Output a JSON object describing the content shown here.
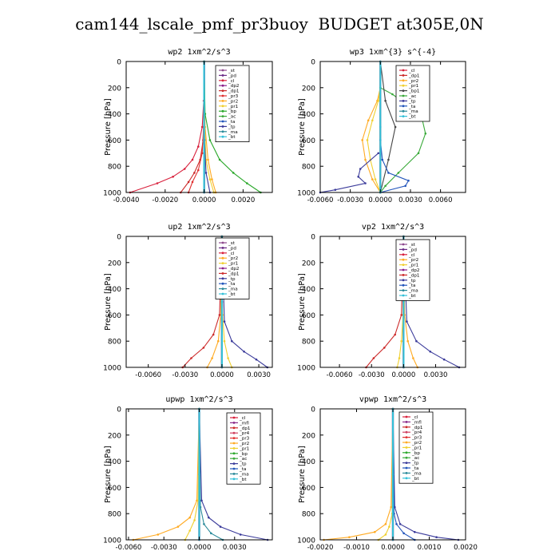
{
  "title": "cam144_lscale_pmf_pr3buoy  BUDGET at305E,0N",
  "colors": {
    "_st": "#8e4a8e",
    "_pd": "#6a2a86",
    "_cl": "#d8203c",
    "_dp2": "#8a1f8a",
    "_dp1": "#cc2a2a",
    "_pr3": "#e03030",
    "_pr2": "#ffaa22",
    "_pr1": "#f0d030",
    "_bp": "#2aa82a",
    "_ac": "#3aaa3a",
    "_ta": "#2255bb",
    "_tp": "#3a3a9a",
    "_ma": "#2a8a9a",
    "_bt": "#33c0d8",
    "_mfl": "#8a2a8a",
    "_pr4": "#d04060"
  },
  "chart_data": [
    {
      "type": "line",
      "title": "wp2  1xm^2/s^3",
      "ylabel": "Pressure [hPa]",
      "xlim": [
        -0.004,
        0.0035
      ],
      "ylim": [
        1000,
        0
      ],
      "xticks": [
        -0.004,
        -0.002,
        0.0,
        0.002
      ],
      "xtick_labels": [
        "-0.0040",
        "-0.0020",
        "0.0000",
        "0.0020"
      ],
      "yticks": [
        0,
        200,
        400,
        600,
        800,
        1000
      ],
      "ytick_labels": [
        "0",
        "200",
        "400",
        "600",
        "800",
        "1000"
      ],
      "legend": [
        "_st",
        "_pd",
        "_cl",
        "_dp2",
        "_dp1",
        "_pr3",
        "_pr2",
        "_pr1",
        "_bp",
        "_ac",
        "_ta",
        "_tp",
        "_ma",
        "_bt"
      ],
      "legend_position": "top-right",
      "series": [
        {
          "name": "_st",
          "x": [
            0,
            0,
            0
          ],
          "p": [
            0,
            500,
            1000
          ]
        },
        {
          "name": "_pd",
          "x": [
            0,
            0,
            0
          ],
          "p": [
            0,
            500,
            1000
          ]
        },
        {
          "name": "_cl",
          "x": [
            0,
            -2e-05,
            -0.0001,
            -0.0003,
            -0.0006,
            -0.001,
            -0.0016,
            -0.0024,
            -0.0038
          ],
          "p": [
            0,
            300,
            500,
            650,
            750,
            820,
            880,
            930,
            1000
          ]
        },
        {
          "name": "_dp1",
          "x": [
            0,
            -1e-05,
            -5e-05,
            -0.0002,
            -0.0005,
            -0.0008,
            -0.0012
          ],
          "p": [
            0,
            400,
            600,
            750,
            850,
            920,
            1000
          ]
        },
        {
          "name": "_pr3",
          "x": [
            0,
            -3e-05,
            -0.0001,
            -0.0003,
            -0.0006,
            -0.0008
          ],
          "p": [
            0,
            500,
            700,
            830,
            920,
            1000
          ]
        },
        {
          "name": "_pr2",
          "x": [
            0,
            5e-05,
            0.0002,
            0.0004,
            0.0006
          ],
          "p": [
            0,
            500,
            750,
            900,
            1000
          ]
        },
        {
          "name": "_pr1",
          "x": [
            0,
            3e-05,
            0.0001,
            0.0003,
            0.0005
          ],
          "p": [
            0,
            500,
            750,
            900,
            1000
          ]
        },
        {
          "name": "_bp",
          "x": [
            0,
            5e-05,
            0.0003,
            0.0008,
            0.0015,
            0.0022,
            0.0029
          ],
          "p": [
            0,
            400,
            600,
            750,
            850,
            930,
            1000
          ]
        },
        {
          "name": "_tp",
          "x": [
            0,
            2e-05,
            0.0001,
            0.0003
          ],
          "p": [
            0,
            600,
            850,
            1000
          ]
        },
        {
          "name": "_bt",
          "x": [
            0,
            0,
            0
          ],
          "p": [
            0,
            500,
            1000
          ]
        }
      ]
    },
    {
      "type": "line",
      "title": "wp3  1xm^{3} s^{-4}",
      "ylabel": "Pressure [hPa]",
      "xlim": [
        -0.006,
        0.0085
      ],
      "ylim": [
        1000,
        0
      ],
      "xticks": [
        -0.006,
        -0.003,
        0.0,
        0.003,
        0.006
      ],
      "xtick_labels": [
        "-0.0060",
        "-0.0030",
        "0.0000",
        "0.0030",
        "0.0060"
      ],
      "yticks": [
        0,
        200,
        400,
        600,
        800,
        1000
      ],
      "ytick_labels": [
        "0",
        "200",
        "400",
        "600",
        "800",
        "1000"
      ],
      "legend": [
        "_cl",
        "_dp1",
        "_pr2",
        "_pr1",
        "_bp1",
        "_ac",
        "_tp",
        "_ta",
        "_ma",
        "_bt"
      ],
      "legend_position": "top-right",
      "series": [
        {
          "name": "_cl",
          "x": [
            0,
            0,
            0
          ],
          "p": [
            0,
            500,
            1000
          ]
        },
        {
          "name": "_pr2",
          "x": [
            0,
            -0.0003,
            -0.0012,
            -0.0018,
            -0.0015,
            -0.0008,
            0
          ],
          "p": [
            200,
            300,
            450,
            600,
            750,
            900,
            1000
          ]
        },
        {
          "name": "_pr1",
          "x": [
            0,
            -0.0002,
            -0.0008,
            -0.0013,
            -0.001,
            -0.0005,
            0
          ],
          "p": [
            200,
            300,
            450,
            600,
            750,
            900,
            1000
          ]
        },
        {
          "name": "_ac",
          "x": [
            0,
            0.0012,
            0.003,
            0.0042,
            0.0045,
            0.0038,
            0.0018,
            0.0005,
            0
          ],
          "p": [
            200,
            250,
            350,
            450,
            550,
            700,
            850,
            950,
            1000
          ]
        },
        {
          "name": "_bp1",
          "x": [
            0,
            0.0005,
            0.0015,
            0.0008,
            0
          ],
          "p": [
            0,
            300,
            500,
            750,
            1000
          ]
        },
        {
          "name": "_ta",
          "x": [
            0,
            0.0002,
            0.0008,
            0.0028,
            0.0025,
            0
          ],
          "p": [
            600,
            750,
            850,
            910,
            950,
            1000
          ]
        },
        {
          "name": "_tp",
          "x": [
            -0.0002,
            -0.002,
            -0.0022,
            -0.0015,
            -0.0045,
            -0.006
          ],
          "p": [
            700,
            820,
            880,
            930,
            980,
            1000
          ]
        },
        {
          "name": "_bt",
          "x": [
            0,
            0,
            0
          ],
          "p": [
            0,
            500,
            1000
          ]
        }
      ]
    },
    {
      "type": "line",
      "title": "up2  1xm^2/s^3",
      "ylabel": "Pressure [hPa]",
      "xlim": [
        -0.0078,
        0.0041
      ],
      "ylim": [
        1000,
        0
      ],
      "xticks": [
        -0.006,
        -0.003,
        0.0,
        0.003
      ],
      "xtick_labels": [
        "-0.0060",
        "-0.0030",
        "0.0000",
        "0.0030"
      ],
      "yticks": [
        0,
        200,
        400,
        600,
        800,
        1000
      ],
      "ytick_labels": [
        "0",
        "200",
        "400",
        "600",
        "800",
        "1000"
      ],
      "legend": [
        "_st",
        "_pd",
        "_cl",
        "_pr2",
        "_pr1",
        "_dp2",
        "_dp1",
        "_tp",
        "_ta",
        "_ma",
        "_bt"
      ],
      "legend_position": "top-right",
      "series": [
        {
          "name": "_st",
          "x": [
            0,
            0,
            0
          ],
          "p": [
            0,
            500,
            1000
          ]
        },
        {
          "name": "_cl",
          "x": [
            0,
            0,
            0
          ],
          "p": [
            0,
            500,
            1000
          ]
        },
        {
          "name": "_pr2",
          "x": [
            0,
            -0.0001,
            -0.0003,
            -0.0008,
            -0.0012
          ],
          "p": [
            0,
            600,
            800,
            930,
            1000
          ]
        },
        {
          "name": "_pr1",
          "x": [
            0,
            5e-05,
            0.0002,
            0.0005,
            0.0008
          ],
          "p": [
            0,
            600,
            800,
            930,
            1000
          ]
        },
        {
          "name": "_dp1",
          "x": [
            0,
            -0.0002,
            -0.0007,
            -0.0015,
            -0.0025,
            -0.0032
          ],
          "p": [
            0,
            600,
            750,
            850,
            930,
            1000
          ]
        },
        {
          "name": "_tp",
          "x": [
            0,
            0.0002,
            0.0008,
            0.0018,
            0.0028,
            0.0037
          ],
          "p": [
            0,
            650,
            800,
            880,
            940,
            1000
          ]
        },
        {
          "name": "_bt",
          "x": [
            0,
            0,
            0
          ],
          "p": [
            0,
            500,
            1000
          ]
        }
      ]
    },
    {
      "type": "line",
      "title": "vp2  1xm^2/s^3",
      "ylabel": "Pressure [hPa]",
      "xlim": [
        -0.0078,
        0.0058
      ],
      "ylim": [
        1000,
        0
      ],
      "xticks": [
        -0.006,
        -0.003,
        0.0,
        0.003
      ],
      "xtick_labels": [
        "-0.0060",
        "-0.0030",
        "0.0000",
        "0.0030"
      ],
      "yticks": [
        0,
        200,
        400,
        600,
        800,
        1000
      ],
      "ytick_labels": [
        "0",
        "200",
        "400",
        "600",
        "800",
        "1000"
      ],
      "legend": [
        "_st",
        "_pd",
        "_cl",
        "_pr2",
        "_pr1",
        "_dp2",
        "_dp1",
        "_tp",
        "_ta",
        "_ma",
        "_bt"
      ],
      "legend_position": "top-right",
      "series": [
        {
          "name": "_st",
          "x": [
            0,
            0,
            0
          ],
          "p": [
            0,
            500,
            1000
          ]
        },
        {
          "name": "_cl",
          "x": [
            0,
            0,
            0
          ],
          "p": [
            0,
            500,
            1000
          ]
        },
        {
          "name": "_pr2",
          "x": [
            0,
            0.0001,
            0.0004,
            0.0009,
            0.0013
          ],
          "p": [
            0,
            600,
            800,
            930,
            1000
          ]
        },
        {
          "name": "_pr1",
          "x": [
            0,
            -5e-05,
            -0.0002,
            -0.0004,
            -0.0006
          ],
          "p": [
            0,
            600,
            800,
            930,
            1000
          ]
        },
        {
          "name": "_dp1",
          "x": [
            0,
            -0.0002,
            -0.0008,
            -0.0018,
            -0.0028,
            -0.0035
          ],
          "p": [
            0,
            600,
            750,
            850,
            930,
            1000
          ]
        },
        {
          "name": "_tp",
          "x": [
            0,
            0.0003,
            0.0012,
            0.0025,
            0.0038,
            0.0052
          ],
          "p": [
            0,
            650,
            800,
            880,
            940,
            1000
          ]
        },
        {
          "name": "_bt",
          "x": [
            0,
            0,
            0
          ],
          "p": [
            0,
            500,
            1000
          ]
        }
      ]
    },
    {
      "type": "line",
      "title": "upwp  1xm^2/s^3",
      "ylabel": "Pressure [hPa]",
      "xlim": [
        -0.0062,
        0.0062
      ],
      "ylim": [
        1000,
        0
      ],
      "xticks": [
        -0.006,
        -0.003,
        0.0,
        0.003
      ],
      "xtick_labels": [
        "-0.0060",
        "-0.0030",
        "0.0000",
        "0.0030"
      ],
      "yticks": [
        0,
        200,
        400,
        600,
        800,
        1000
      ],
      "ytick_labels": [
        "0",
        "200",
        "400",
        "600",
        "800",
        "1000"
      ],
      "legend": [
        "_cl",
        "_mfl",
        "_dp1",
        "_pr4",
        "_pr3",
        "_pr2",
        "_pr1",
        "_bp",
        "_ac",
        "_tp",
        "_ta",
        "_ma",
        "_bt"
      ],
      "legend_position": "top-right",
      "series": [
        {
          "name": "_cl",
          "x": [
            0,
            0,
            0
          ],
          "p": [
            0,
            500,
            1000
          ]
        },
        {
          "name": "_mfl",
          "x": [
            0,
            0,
            0
          ],
          "p": [
            0,
            500,
            1000
          ]
        },
        {
          "name": "_pr2",
          "x": [
            0,
            -0.0002,
            -0.0008,
            -0.0018,
            -0.0035,
            -0.0056
          ],
          "p": [
            0,
            700,
            830,
            900,
            960,
            1000
          ]
        },
        {
          "name": "_pr1",
          "x": [
            0,
            -0.0001,
            -0.0004,
            -0.0008,
            -0.0012
          ],
          "p": [
            0,
            700,
            850,
            930,
            1000
          ]
        },
        {
          "name": "_tp",
          "x": [
            0,
            0.0002,
            0.0008,
            0.0018,
            0.0035,
            0.0058
          ],
          "p": [
            0,
            700,
            830,
            900,
            960,
            1000
          ]
        },
        {
          "name": "_ma",
          "x": [
            0,
            0.0001,
            0.0004,
            0.001,
            0.002
          ],
          "p": [
            0,
            750,
            880,
            950,
            1000
          ]
        },
        {
          "name": "_bt",
          "x": [
            0,
            0,
            0
          ],
          "p": [
            0,
            500,
            1000
          ]
        }
      ]
    },
    {
      "type": "line",
      "title": "vpwp  1xm^2/s^3",
      "ylabel": "Pressure [hPa]",
      "xlim": [
        -0.002,
        0.002
      ],
      "ylim": [
        1000,
        0
      ],
      "xticks": [
        -0.002,
        -0.001,
        0.0,
        0.001,
        0.002
      ],
      "xtick_labels": [
        "-0.0020",
        "-0.0010",
        "0.0000",
        "0.0010",
        "0.0020"
      ],
      "yticks": [
        0,
        200,
        400,
        600,
        800,
        1000
      ],
      "ytick_labels": [
        "0",
        "200",
        "400",
        "600",
        "800",
        "1000"
      ],
      "legend": [
        "_cl",
        "_mfl",
        "_dp1",
        "_pr4",
        "_pr3",
        "_pr2",
        "_pr1",
        "_bp",
        "_ac",
        "_tp",
        "_ta",
        "_ma",
        "_bt"
      ],
      "legend_position": "top-right",
      "series": [
        {
          "name": "_cl",
          "x": [
            0,
            0,
            0
          ],
          "p": [
            0,
            500,
            1000
          ]
        },
        {
          "name": "_mfl",
          "x": [
            0,
            0,
            0
          ],
          "p": [
            0,
            500,
            1000
          ]
        },
        {
          "name": "_pr2",
          "x": [
            0,
            -5e-05,
            -0.0002,
            -0.0005,
            -0.0012,
            -0.0019
          ],
          "p": [
            0,
            750,
            880,
            940,
            980,
            1000
          ]
        },
        {
          "name": "_pr1",
          "x": [
            0,
            -2e-05,
            -0.0001,
            -0.0002,
            -0.0004
          ],
          "p": [
            0,
            800,
            900,
            960,
            1000
          ]
        },
        {
          "name": "_tp",
          "x": [
            0,
            5e-05,
            0.0002,
            0.0006,
            0.0012,
            0.0018
          ],
          "p": [
            0,
            750,
            880,
            940,
            980,
            1000
          ]
        },
        {
          "name": "_ta",
          "x": [
            0,
            3e-05,
            0.0001,
            0.0003,
            0.0006
          ],
          "p": [
            0,
            800,
            880,
            950,
            1000
          ]
        },
        {
          "name": "_bt",
          "x": [
            0,
            0,
            0
          ],
          "p": [
            0,
            500,
            1000
          ]
        }
      ]
    }
  ]
}
